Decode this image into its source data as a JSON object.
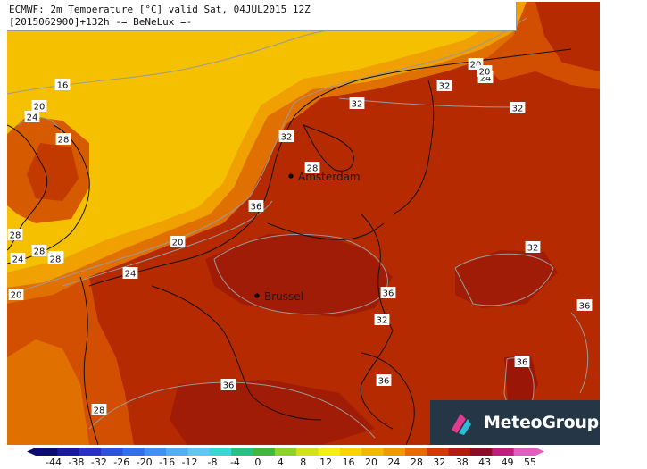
{
  "header": {
    "line1": "ECMWF: 2m Temperature [°C] valid Sat, 04JUL2015 12Z",
    "line2": "[2015062900]+132h -= BeNeLux =-"
  },
  "logo": {
    "text": "MeteoGroup",
    "icon": "meteogroup-logo-icon"
  },
  "cities": [
    {
      "name": "Amsterdam"
    },
    {
      "name": "Brussel"
    }
  ],
  "contour_labels": [
    "16",
    "20",
    "24",
    "28",
    "32",
    "36",
    "20",
    "24",
    "28",
    "32",
    "36",
    "28",
    "32",
    "36",
    "28",
    "20",
    "28",
    "32",
    "32",
    "36",
    "36",
    "32",
    "36",
    "20",
    "24",
    "28",
    "20",
    "24",
    "28"
  ],
  "legend": {
    "values": [
      "-44",
      "-38",
      "-32",
      "-26",
      "-20",
      "-16",
      "-12",
      "-8",
      "-4",
      "0",
      "4",
      "8",
      "12",
      "16",
      "20",
      "24",
      "28",
      "32",
      "38",
      "43",
      "49",
      "55"
    ],
    "colors": [
      "#0a0a70",
      "#1a1a9c",
      "#2a2fc8",
      "#3050e0",
      "#2f6ff0",
      "#3e92f7",
      "#52aef5",
      "#5fc9f2",
      "#3ad8d0",
      "#27c283",
      "#3fb83c",
      "#8fd32a",
      "#d2e31d",
      "#f5ef18",
      "#f8d409",
      "#f4b800",
      "#f09a00",
      "#e86a00",
      "#d23b00",
      "#b31c12",
      "#8d0d2a",
      "#c0207c",
      "#e060c0"
    ]
  },
  "colors": {
    "hot": "#b52a00",
    "warm": "#d65a00",
    "mild": "#f08a00",
    "cool": "#f4b800",
    "coolest": "#f4c300"
  }
}
